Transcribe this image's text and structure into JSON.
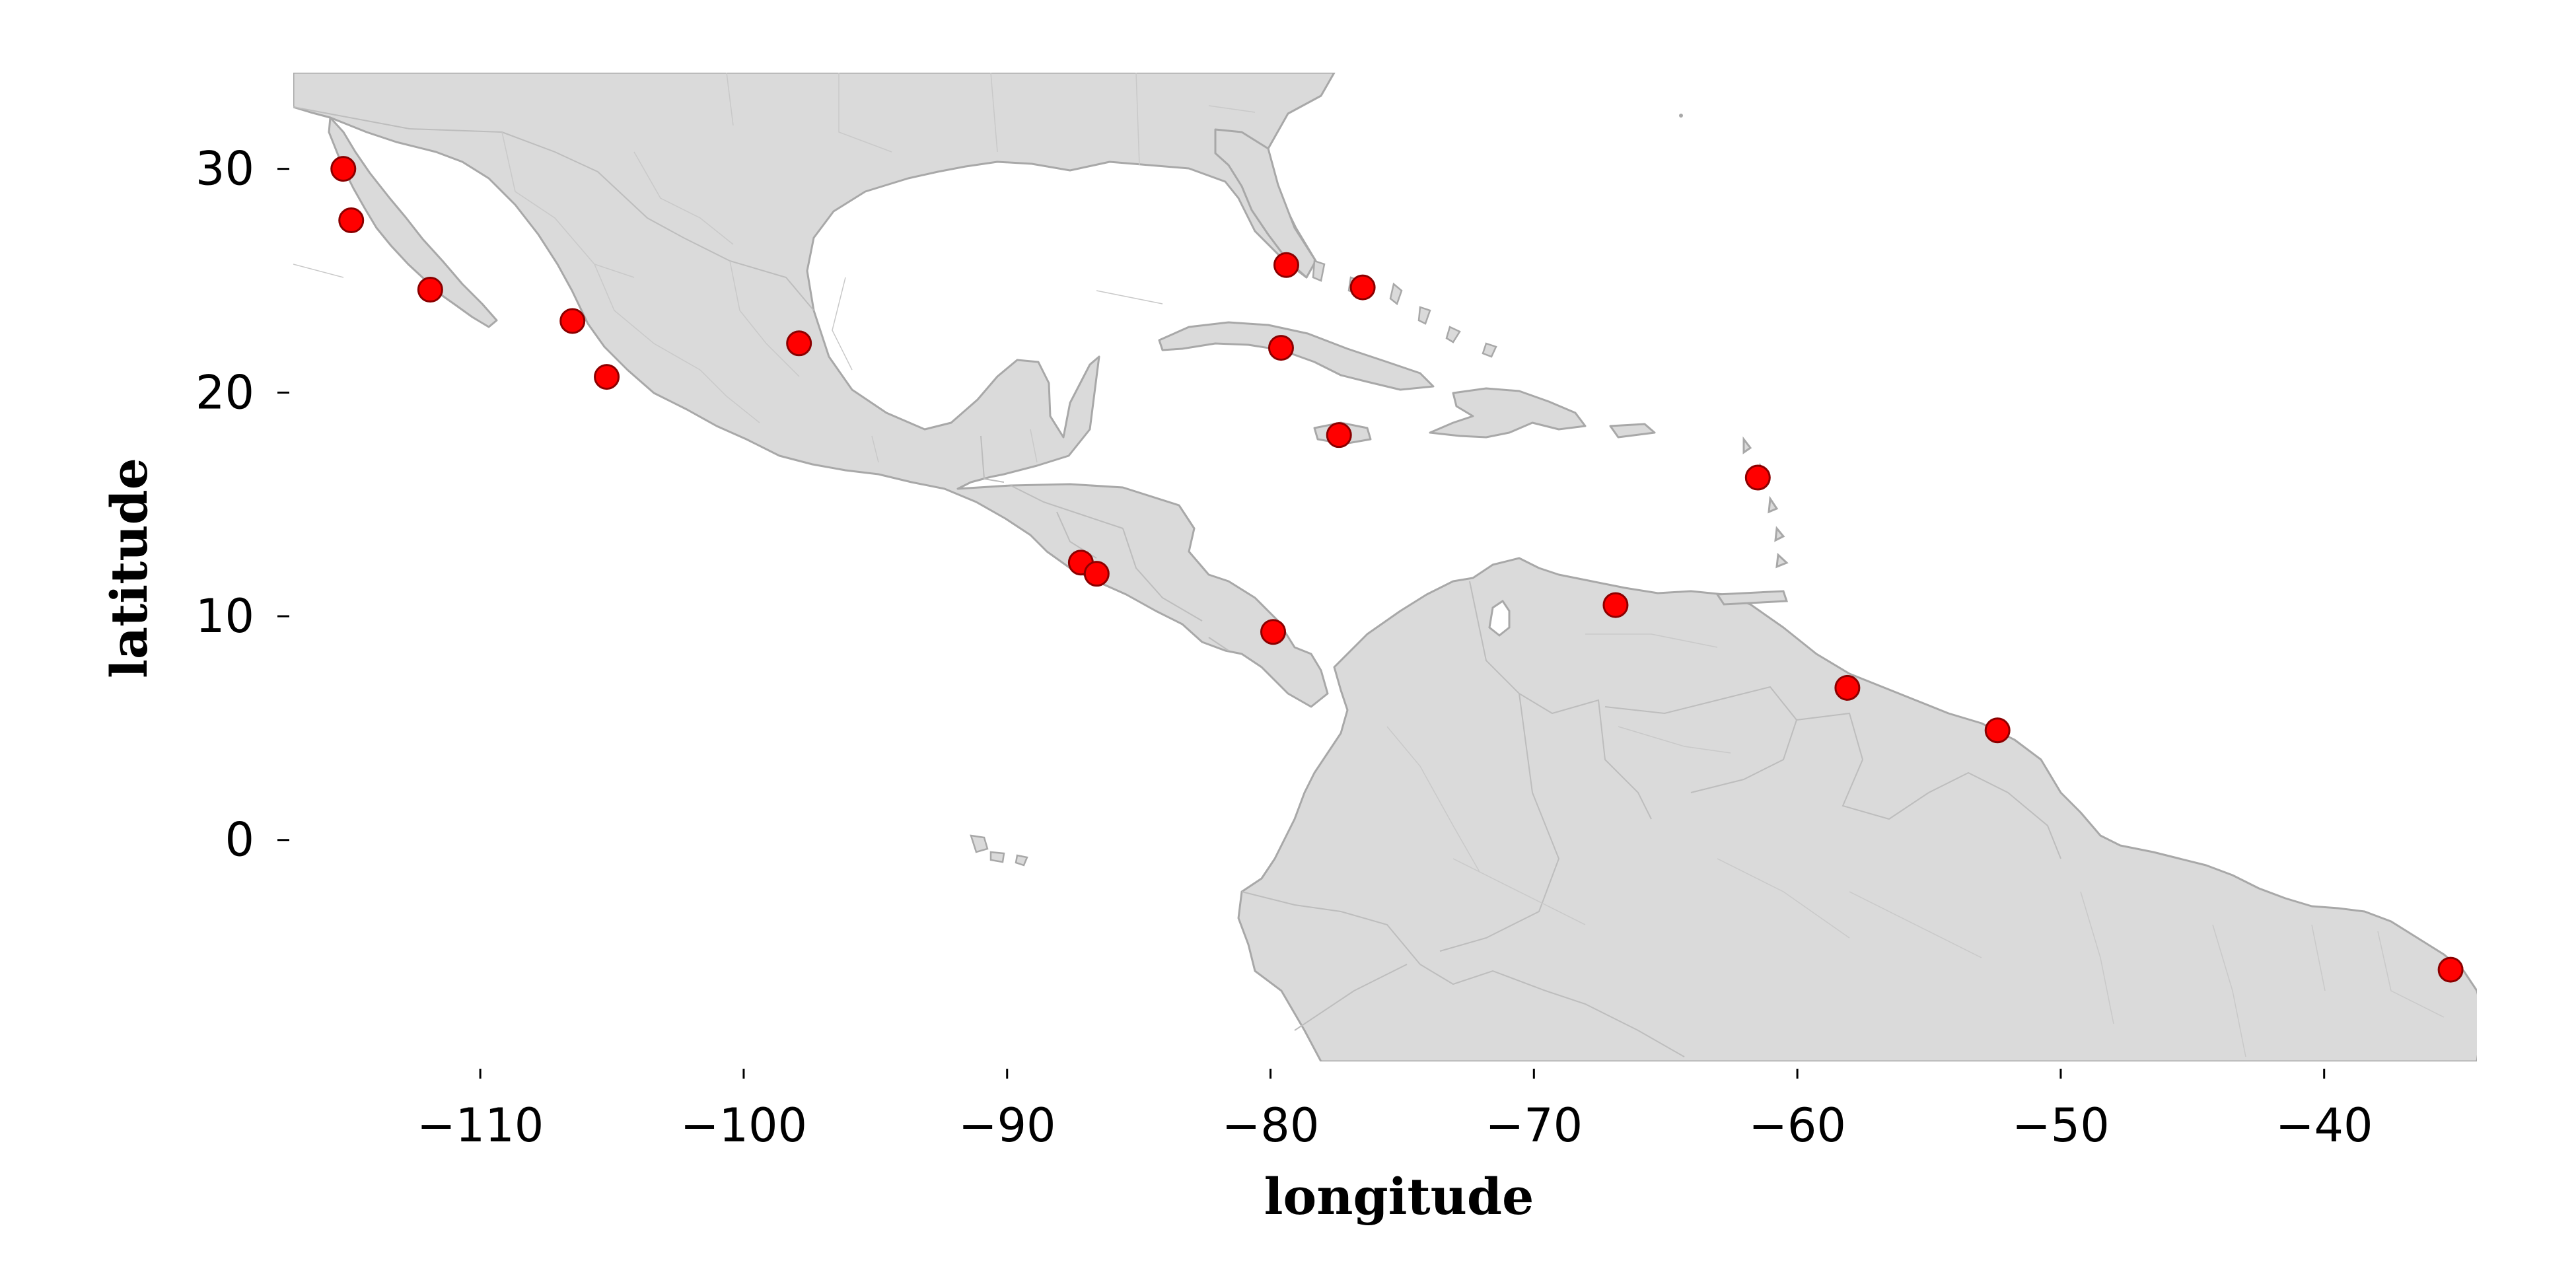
{
  "chart_data": {
    "type": "scatter",
    "title": "",
    "xlabel": "longitude",
    "ylabel": "latitude",
    "xlim": [
      -117.1,
      -34.2
    ],
    "ylim": [
      -9.9,
      34.3
    ],
    "xticks": [
      -110,
      -100,
      -90,
      -80,
      -70,
      -60,
      -50,
      -40
    ],
    "xtick_labels": [
      "−110",
      "−100",
      "−90",
      "−80",
      "−70",
      "−60",
      "−50",
      "−40"
    ],
    "yticks": [
      0,
      10,
      20,
      30
    ],
    "ytick_labels": [
      "0",
      "10",
      "20",
      "30"
    ],
    "grid": false,
    "basemap": "Central America, Caribbean and northern South America with country and province borders",
    "colors": {
      "land": "#dadada",
      "coastline": "#a8a8a8",
      "marker": "#ff0000",
      "marker_edge": "#8b0000"
    },
    "series": [
      {
        "points": [
          {
            "x": -115.2,
            "y": 30.0
          },
          {
            "x": -114.9,
            "y": 27.7
          },
          {
            "x": -111.9,
            "y": 24.6
          },
          {
            "x": -106.5,
            "y": 23.2
          },
          {
            "x": -105.2,
            "y": 20.7
          },
          {
            "x": -97.9,
            "y": 22.2
          },
          {
            "x": -79.4,
            "y": 25.7
          },
          {
            "x": -76.5,
            "y": 24.7
          },
          {
            "x": -79.6,
            "y": 22.0
          },
          {
            "x": -77.4,
            "y": 18.1
          },
          {
            "x": -61.5,
            "y": 16.2
          },
          {
            "x": -87.2,
            "y": 12.4
          },
          {
            "x": -86.6,
            "y": 11.9
          },
          {
            "x": -79.9,
            "y": 9.3
          },
          {
            "x": -66.9,
            "y": 10.5
          },
          {
            "x": -58.1,
            "y": 6.8
          },
          {
            "x": -52.4,
            "y": 4.9
          },
          {
            "x": -35.2,
            "y": -5.8
          }
        ]
      }
    ]
  }
}
